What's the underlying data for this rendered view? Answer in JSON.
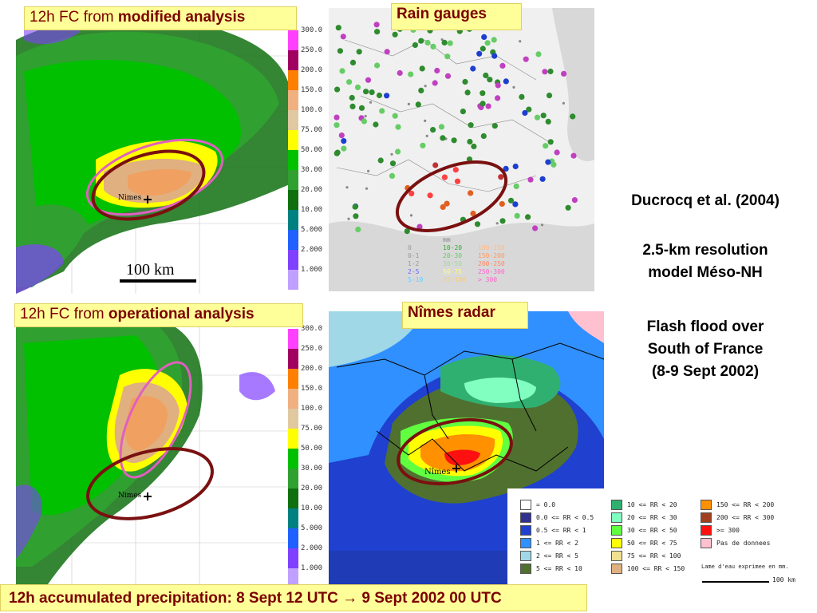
{
  "panels": {
    "top_left_label_prefix": "12h FC from ",
    "top_left_label_bold": "modified analysis",
    "bottom_left_label_prefix": "12h FC from ",
    "bottom_left_label_bold": "operational analysis",
    "rain_gauges_label": "Rain gauges",
    "radar_label": "Nîmes radar",
    "scale_label": "100 km",
    "city_label": "Nimes",
    "radar_city_label": "Nîmes"
  },
  "colorbar": {
    "ticks": [
      "300.0",
      "250.0",
      "200.0",
      "150.0",
      "100.0",
      "75.00",
      "50.00",
      "30.00",
      "20.00",
      "10.00",
      "5.000",
      "2.000",
      "1.000"
    ],
    "colors": [
      "#ff40ff",
      "#a00060",
      "#ff8000",
      "#f0b080",
      "#e0c8a0",
      "#ffff00",
      "#00c000",
      "#30a030",
      "#107010",
      "#008080",
      "#2060ff",
      "#8040ff",
      "#c0a0ff"
    ]
  },
  "gauge_legend": {
    "unit": "mm",
    "entries": [
      {
        "text": "0",
        "color": "#999999"
      },
      {
        "text": "0-1",
        "color": "#999999"
      },
      {
        "text": "1-2",
        "color": "#999999"
      },
      {
        "text": "2-5",
        "color": "#6666ff"
      },
      {
        "text": "5-10",
        "color": "#66ccff"
      },
      {
        "text": "10-20",
        "color": "#33aa33"
      },
      {
        "text": "20-30",
        "color": "#66cc66"
      },
      {
        "text": "30-50",
        "color": "#99dd99"
      },
      {
        "text": "50-75",
        "color": "#ffff66"
      },
      {
        "text": "75-100",
        "color": "#ffcc66"
      },
      {
        "text": "100-150",
        "color": "#ffbb88"
      },
      {
        "text": "150-200",
        "color": "#ff9966"
      },
      {
        "text": "200-250",
        "color": "#ff8866"
      },
      {
        "text": "250-300",
        "color": "#ff66cc"
      },
      {
        "text": "> 300",
        "color": "#ff66cc"
      }
    ]
  },
  "radar_legend": {
    "col1": [
      {
        "text": "= 0.0",
        "color": "#ffffff"
      },
      {
        "text": "0.0 <= RR < 0.5",
        "color": "#303090"
      },
      {
        "text": "0.5 <= RR < 1",
        "color": "#2040d0"
      },
      {
        "text": "1 <= RR < 2",
        "color": "#3090ff"
      },
      {
        "text": "2 <= RR < 5",
        "color": "#a0d8e8"
      },
      {
        "text": "5 <= RR < 10",
        "color": "#507030"
      }
    ],
    "col2": [
      {
        "text": "10 <= RR < 20",
        "color": "#30b070"
      },
      {
        "text": "20 <= RR < 30",
        "color": "#80ffc0"
      },
      {
        "text": "30 <= RR < 50",
        "color": "#60ff40"
      },
      {
        "text": "50 <= RR < 75",
        "color": "#ffff00"
      },
      {
        "text": "75 <= RR < 100",
        "color": "#f0e090"
      },
      {
        "text": "100 <= RR < 150",
        "color": "#e0b080"
      }
    ],
    "col3": [
      {
        "text": "150 <= RR < 200",
        "color": "#ff9000"
      },
      {
        "text": "200 <= RR < 300",
        "color": "#a04020"
      },
      {
        "text": ">= 300",
        "color": "#ff1010"
      },
      {
        "text": "Pas de donnees",
        "color": "#ffc0d0"
      }
    ],
    "note": "Lame d'eau exprimee en mm.",
    "scale": "100 km"
  },
  "right_text": {
    "citation": "Ducrocq et al. (2004)",
    "line1": "2.5-km resolution",
    "line2": "model Méso-NH",
    "line3": "Flash flood over",
    "line4": "South of France",
    "line5": "(8-9 Sept 2002)"
  },
  "bottom_caption": "12h accumulated precipitation: 8 Sept 12 UTC → 9 Sept 2002 00 UTC",
  "colors": {
    "label_bg": "#ffff99",
    "label_text": "#7a0000",
    "ellipse_dark": "#7a1010",
    "ellipse_pink": "#e060c0"
  }
}
